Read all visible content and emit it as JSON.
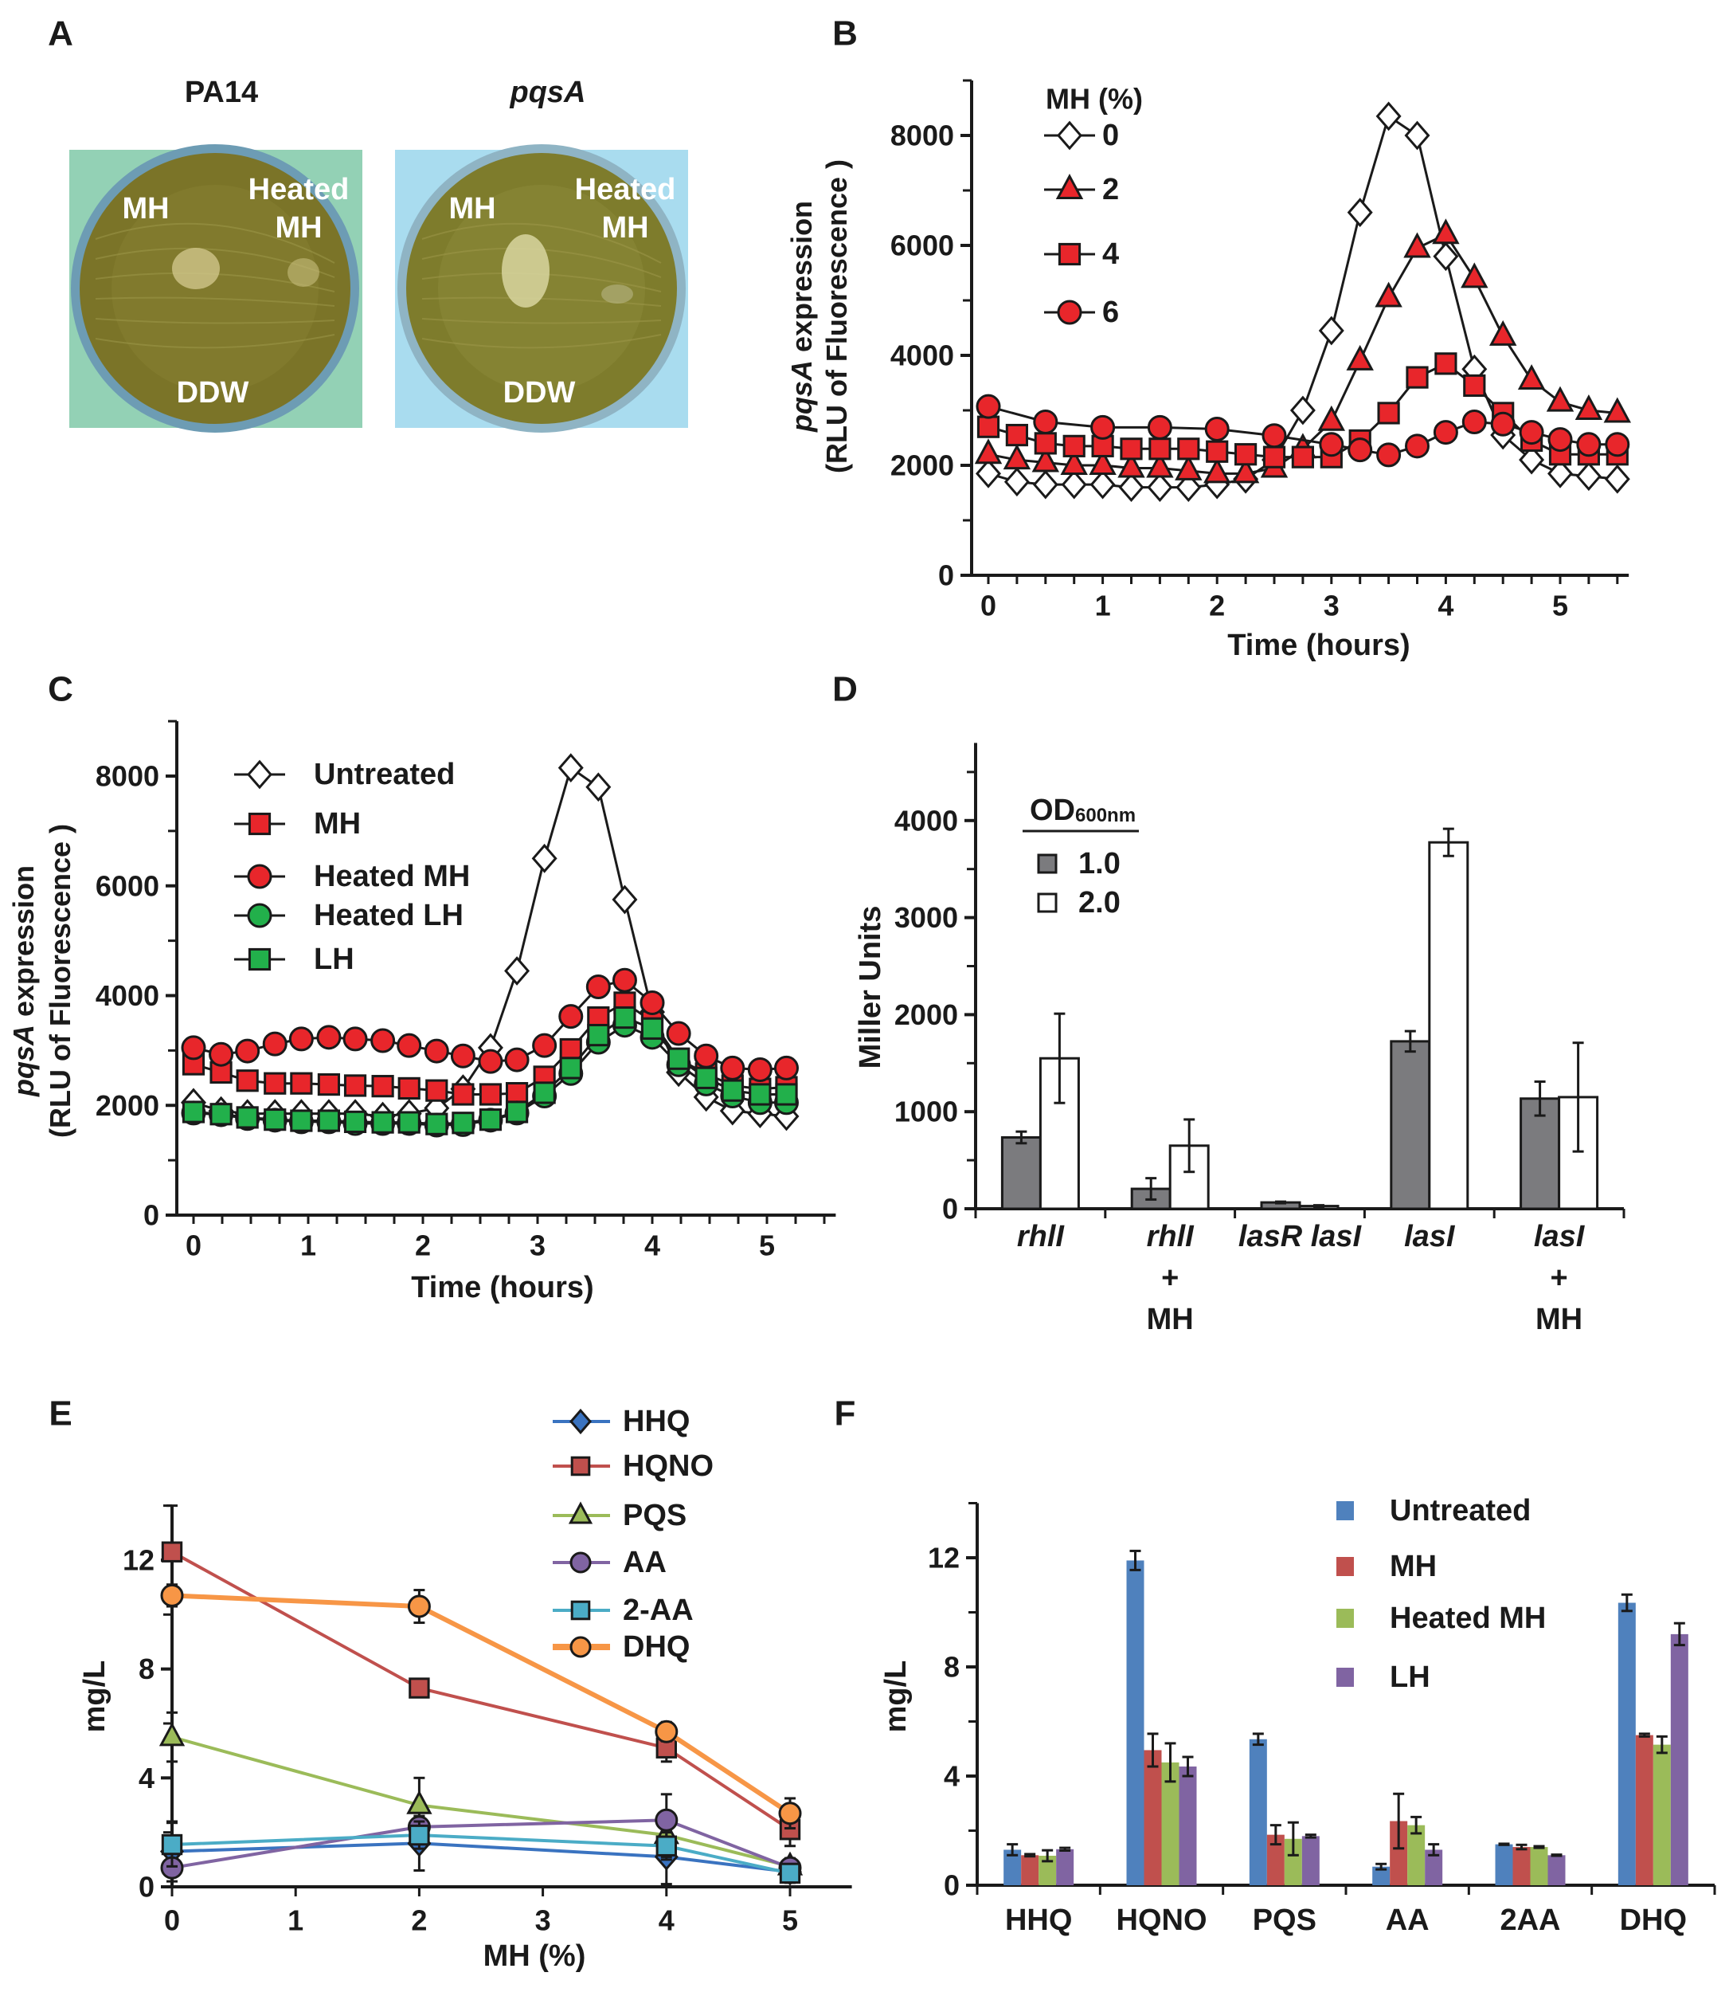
{
  "panel_labels": [
    "A",
    "B",
    "C",
    "D",
    "E",
    "F"
  ],
  "panel_a": {
    "plates": [
      {
        "title": "PA14",
        "title_italic": false,
        "bg_color": "#93d1b5",
        "spot_labels": {
          "mh": "MH",
          "heated_1": "Heated",
          "heated_2": "MH",
          "ddw": "DDW"
        }
      },
      {
        "title": "pqsA",
        "title_italic": true,
        "bg_color": "#a9dcef",
        "spot_labels": {
          "mh": "MH",
          "heated_1": "Heated",
          "heated_2": "MH",
          "ddw": "DDW"
        }
      }
    ]
  },
  "chart_data": [
    {
      "panel": "B",
      "type": "line",
      "xlabel": "Time (hours)",
      "ylabel_lines": [
        [
          {
            "text": "pqsA",
            "italic": true
          },
          {
            "text": " expression",
            "italic": false
          }
        ],
        [
          {
            "text": "(RLU of Fluorescence )",
            "italic": false
          }
        ]
      ],
      "xlim": [
        0,
        5.6
      ],
      "ylim": [
        0,
        9000
      ],
      "xticks": [
        0,
        1,
        2,
        3,
        4,
        5
      ],
      "yticks": [
        0,
        2000,
        4000,
        6000,
        8000
      ],
      "grid": false,
      "legend_title": "MH (%)",
      "legend_position": "top-left",
      "series": [
        {
          "name": "0",
          "marker": "diamond",
          "fill": "#ffffff",
          "x": [
            0,
            0.25,
            0.5,
            0.75,
            1,
            1.25,
            1.5,
            1.75,
            2,
            2.25,
            2.5,
            2.75,
            3,
            3.25,
            3.5,
            3.75,
            4,
            4.25,
            4.5,
            4.75,
            5,
            5.25,
            5.5
          ],
          "y": [
            1850,
            1700,
            1650,
            1650,
            1650,
            1600,
            1600,
            1600,
            1650,
            1750,
            2100,
            3000,
            4450,
            6600,
            8350,
            8000,
            5800,
            3750,
            2550,
            2100,
            1850,
            1800,
            1750
          ]
        },
        {
          "name": "2",
          "marker": "triangle",
          "fill": "#e8262b",
          "x": [
            0,
            0.25,
            0.5,
            0.75,
            1,
            1.25,
            1.5,
            1.75,
            2,
            2.25,
            2.5,
            2.75,
            3,
            3.25,
            3.5,
            3.75,
            4,
            4.25,
            4.5,
            4.75,
            5,
            5.25,
            5.5
          ],
          "y": [
            2200,
            2100,
            2050,
            2000,
            2000,
            1950,
            1950,
            1900,
            1850,
            1850,
            1950,
            2300,
            2800,
            3900,
            5050,
            5950,
            6200,
            5400,
            4350,
            3550,
            3150,
            3000,
            2950
          ]
        },
        {
          "name": "4",
          "marker": "square",
          "fill": "#e8262b",
          "x": [
            0,
            0.25,
            0.5,
            0.75,
            1,
            1.25,
            1.5,
            1.75,
            2,
            2.25,
            2.5,
            2.75,
            3,
            3.25,
            3.5,
            3.75,
            4,
            4.25,
            4.5,
            4.75,
            5,
            5.25,
            5.5
          ],
          "y": [
            2700,
            2550,
            2400,
            2350,
            2350,
            2300,
            2300,
            2300,
            2250,
            2200,
            2150,
            2150,
            2150,
            2450,
            2950,
            3600,
            3850,
            3450,
            2950,
            2450,
            2200,
            2200,
            2200
          ]
        },
        {
          "name": "6",
          "marker": "circle",
          "fill": "#e8262b",
          "x": [
            0,
            0.5,
            1,
            1.5,
            2,
            2.5,
            3,
            3.25,
            3.5,
            3.75,
            4,
            4.25,
            4.5,
            4.75,
            5,
            5.25,
            5.5
          ],
          "y": [
            3070,
            2790,
            2690,
            2690,
            2660,
            2540,
            2380,
            2280,
            2190,
            2350,
            2600,
            2790,
            2750,
            2600,
            2470,
            2380,
            2380
          ]
        }
      ]
    },
    {
      "panel": "C",
      "type": "line",
      "xlabel": "Time (hours)",
      "ylabel_lines": [
        [
          {
            "text": "pqsA",
            "italic": true
          },
          {
            "text": " expression",
            "italic": false
          }
        ],
        [
          {
            "text": "(RLU of Fluorescence )",
            "italic": false
          }
        ]
      ],
      "xlim": [
        0,
        5.6
      ],
      "ylim": [
        0,
        9000
      ],
      "xticks": [
        0,
        1,
        2,
        3,
        4,
        5
      ],
      "yticks": [
        0,
        2000,
        4000,
        6000,
        8000
      ],
      "grid": false,
      "legend_position": "top-left",
      "legend_order": [
        0,
        1,
        2,
        3,
        4
      ],
      "series": [
        {
          "name": "Untreated",
          "marker": "diamond",
          "fill": "#ffffff",
          "x": [
            0,
            0.24,
            0.47,
            0.71,
            0.94,
            1.18,
            1.41,
            1.65,
            1.88,
            2.12,
            2.35,
            2.59,
            2.82,
            3.06,
            3.29,
            3.53,
            3.76,
            4.0,
            4.23,
            4.47,
            4.7,
            4.94,
            5.17
          ],
          "y": [
            2050,
            1900,
            1850,
            1850,
            1850,
            1850,
            1850,
            1800,
            1850,
            1950,
            2300,
            3050,
            4450,
            6500,
            8150,
            7800,
            5750,
            3700,
            2600,
            2150,
            1900,
            1850,
            1800
          ]
        },
        {
          "name": "MH",
          "marker": "square",
          "fill": "#e8262b",
          "x": [
            0,
            0.24,
            0.47,
            0.71,
            0.94,
            1.18,
            1.41,
            1.65,
            1.88,
            2.12,
            2.35,
            2.59,
            2.82,
            3.06,
            3.29,
            3.53,
            3.76,
            4.0,
            4.23,
            4.47,
            4.7,
            4.94,
            5.17
          ],
          "y": [
            2750,
            2600,
            2450,
            2400,
            2400,
            2380,
            2360,
            2350,
            2310,
            2270,
            2200,
            2200,
            2220,
            2520,
            3020,
            3600,
            3870,
            3530,
            2840,
            2580,
            2360,
            2300,
            2330
          ]
        },
        {
          "name": "Heated MH",
          "marker": "circle",
          "fill": "#e8262b",
          "x": [
            0,
            0.24,
            0.47,
            0.71,
            0.94,
            1.18,
            1.41,
            1.65,
            1.88,
            2.12,
            2.35,
            2.59,
            2.82,
            3.06,
            3.29,
            3.53,
            3.76,
            4.0,
            4.23,
            4.47,
            4.7,
            4.94,
            5.17
          ],
          "y": [
            3050,
            2930,
            2990,
            3120,
            3210,
            3240,
            3210,
            3180,
            3090,
            2990,
            2900,
            2800,
            2830,
            3090,
            3620,
            4160,
            4280,
            3870,
            3310,
            2900,
            2680,
            2650,
            2680
          ]
        },
        {
          "name": "Heated LH",
          "marker": "circle",
          "fill": "#22b04b",
          "x": [
            0,
            0.24,
            0.47,
            0.71,
            0.94,
            1.18,
            1.41,
            1.65,
            1.88,
            2.12,
            2.35,
            2.59,
            2.82,
            3.06,
            3.29,
            3.53,
            3.76,
            4.0,
            4.23,
            4.47,
            4.7,
            4.94,
            5.17
          ],
          "y": [
            1860,
            1830,
            1760,
            1730,
            1700,
            1700,
            1670,
            1670,
            1670,
            1640,
            1650,
            1730,
            1860,
            2170,
            2580,
            3150,
            3460,
            3240,
            2740,
            2390,
            2170,
            2050,
            2050
          ]
        },
        {
          "name": "LH",
          "marker": "square",
          "fill": "#22b04b",
          "x": [
            0,
            0.24,
            0.47,
            0.71,
            0.94,
            1.18,
            1.41,
            1.65,
            1.88,
            2.12,
            2.35,
            2.59,
            2.82,
            3.06,
            3.29,
            3.53,
            3.76,
            4.0,
            4.23,
            4.47,
            4.7,
            4.94,
            5.17
          ],
          "y": [
            1880,
            1840,
            1780,
            1740,
            1720,
            1720,
            1700,
            1690,
            1690,
            1660,
            1680,
            1740,
            1880,
            2230,
            2680,
            3280,
            3600,
            3400,
            2850,
            2500,
            2270,
            2200,
            2200
          ]
        }
      ]
    },
    {
      "panel": "D",
      "type": "bar",
      "ylabel": "Miller Units",
      "ylim": [
        0,
        4800
      ],
      "yticks": [
        0,
        1000,
        2000,
        3000,
        4000
      ],
      "grid": false,
      "legend_title": "OD",
      "legend_title_sub": "600nm",
      "legend_position": "top-left",
      "categories": [
        [
          "rhlI"
        ],
        [
          "rhlI",
          "+",
          "MH"
        ],
        [
          "lasR lasI"
        ],
        [
          "lasI"
        ],
        [
          "lasI",
          "+",
          "MH"
        ]
      ],
      "series": [
        {
          "name": "1.0",
          "color": "#7b7b7e",
          "values": [
            735,
            205,
            65,
            1725,
            1135
          ],
          "errors": [
            60,
            110,
            8,
            105,
            175
          ]
        },
        {
          "name": "2.0",
          "color": "#ffffff",
          "values": [
            1550,
            650,
            28,
            3775,
            1150
          ],
          "errors": [
            460,
            270,
            8,
            140,
            560
          ]
        }
      ]
    },
    {
      "panel": "E",
      "type": "line",
      "xlabel": "MH (%)",
      "ylabel": "mg/L",
      "xlim": [
        0,
        5.5
      ],
      "ylim": [
        0,
        14
      ],
      "xticks": [
        0,
        1,
        2,
        3,
        4,
        5
      ],
      "yticks": [
        0,
        4,
        8,
        12
      ],
      "grid": false,
      "legend_position": "top-right",
      "series": [
        {
          "name": "HHQ",
          "marker": "diamond",
          "color": "#3a73c0",
          "x": [
            0,
            2,
            4,
            5
          ],
          "y": [
            1.3,
            1.6,
            1.1,
            0.55
          ],
          "errors": [
            1.1,
            1.0,
            1.0,
            0.4
          ]
        },
        {
          "name": "HQNO",
          "marker": "square",
          "color": "#c0504d",
          "x": [
            0,
            2,
            4,
            5
          ],
          "y": [
            12.3,
            7.3,
            5.1,
            2.1
          ],
          "errors": [
            1.7,
            0.2,
            0.5,
            0.6
          ]
        },
        {
          "name": "PQS",
          "marker": "triangle",
          "color": "#9bbb59",
          "x": [
            0,
            2,
            4,
            5
          ],
          "y": [
            5.5,
            3.0,
            1.9,
            0.75
          ],
          "errors": [
            0.9,
            1.0,
            0.8,
            0.3
          ]
        },
        {
          "name": "AA",
          "marker": "circle",
          "color": "#8064a2",
          "x": [
            0,
            2,
            4,
            5
          ],
          "y": [
            0.7,
            2.2,
            2.45,
            0.7
          ],
          "errors": [
            0.3,
            0.4,
            0.95,
            0.3
          ]
        },
        {
          "name": "2-AA",
          "marker": "square",
          "color": "#4bacc6",
          "x": [
            0,
            2,
            4,
            5
          ],
          "y": [
            1.55,
            1.9,
            1.5,
            0.5
          ],
          "errors": [
            0.8,
            0.5,
            0.5,
            0.3
          ]
        },
        {
          "name": "DHQ",
          "marker": "circle",
          "color": "#f79646",
          "thick": true,
          "x": [
            0,
            2,
            4,
            5
          ],
          "y": [
            10.7,
            10.3,
            5.7,
            2.7
          ],
          "errors": [
            0.4,
            0.6,
            0.35,
            0.55
          ]
        }
      ]
    },
    {
      "panel": "F",
      "type": "bar",
      "ylabel": "mg/L",
      "ylim": [
        0,
        14
      ],
      "yticks": [
        0,
        4,
        8,
        12
      ],
      "grid": false,
      "legend_position": "top-right",
      "categories": [
        "HHQ",
        "HQNO",
        "PQS",
        "AA",
        "2AA",
        "DHQ"
      ],
      "series": [
        {
          "name": "Untreated",
          "color": "#4f81bd",
          "values": [
            1.3,
            11.9,
            5.35,
            0.68,
            1.5,
            10.35
          ],
          "errors": [
            0.2,
            0.35,
            0.2,
            0.1,
            0.02,
            0.3
          ]
        },
        {
          "name": "MH",
          "color": "#c0504d",
          "values": [
            1.1,
            4.95,
            1.85,
            2.35,
            1.4,
            5.5
          ],
          "errors": [
            0.04,
            0.6,
            0.35,
            1.0,
            0.08,
            0.05
          ]
        },
        {
          "name": "Heated MH",
          "color": "#9bbb59",
          "values": [
            1.08,
            4.5,
            1.7,
            2.2,
            1.4,
            5.15
          ],
          "errors": [
            0.2,
            0.7,
            0.6,
            0.3,
            0.03,
            0.3
          ]
        },
        {
          "name": "LH",
          "color": "#8064a2",
          "values": [
            1.32,
            4.35,
            1.8,
            1.3,
            1.1,
            9.2
          ],
          "errors": [
            0.05,
            0.35,
            0.05,
            0.2,
            0.02,
            0.4
          ]
        }
      ]
    }
  ]
}
